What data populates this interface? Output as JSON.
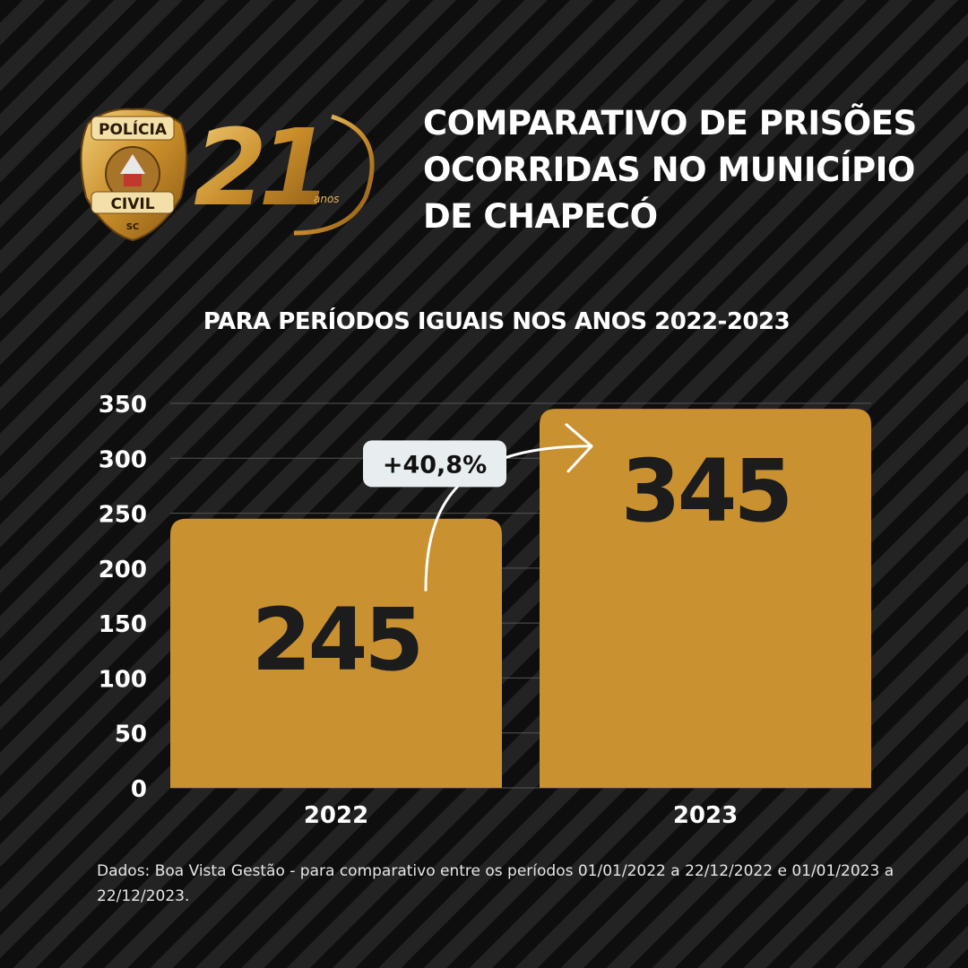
{
  "badge": {
    "top_text": "POLÍCIA",
    "bottom_text": "CIVIL",
    "state": "SC"
  },
  "anniversary": {
    "number": "21",
    "unit": "anos"
  },
  "title_lines": [
    "COMPARATIVO DE PRISÕES",
    "OCORRIDAS NO MUNICÍPIO",
    "DE CHAPECÓ"
  ],
  "colors": {
    "bar": "#c9912f",
    "gold_light": "#e4b45a",
    "gold_dark": "#8a5a14",
    "badge_bg": "#e8eef0"
  },
  "chart_data": {
    "type": "bar",
    "title": "",
    "subtitle": "PARA PERÍODOS IGUAIS NOS ANOS 2022-2023",
    "categories": [
      "2022",
      "2023"
    ],
    "values": [
      245,
      345
    ],
    "value_labels": [
      "245",
      "345"
    ],
    "ylim": [
      0,
      350
    ],
    "yticks": [
      0,
      50,
      100,
      150,
      200,
      250,
      300,
      350
    ],
    "ytick_labels": [
      "0",
      "50",
      "100",
      "150",
      "200",
      "250",
      "300",
      "350"
    ],
    "grid": true,
    "annotation": "+40,8%",
    "xlabel": "",
    "ylabel": ""
  },
  "footnote": "Dados: Boa Vista Gestão - para comparativo entre os períodos 01/01/2022 a 22/12/2022 e 01/01/2023 a 22/12/2023."
}
